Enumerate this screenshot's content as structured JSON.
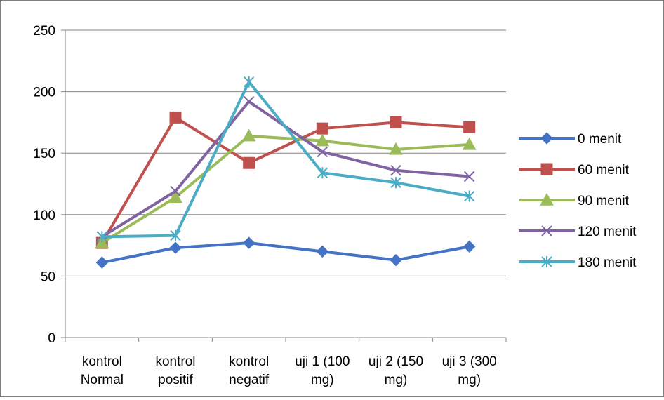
{
  "chart_data": {
    "type": "line",
    "categories": [
      [
        "kontrol",
        "Normal"
      ],
      [
        "kontrol",
        "positif"
      ],
      [
        "kontrol",
        "negatif"
      ],
      [
        "uji 1 (100",
        "mg)"
      ],
      [
        "uji 2 (150",
        "mg)"
      ],
      [
        "uji 3 (300",
        "mg)"
      ]
    ],
    "ylim": [
      0,
      250
    ],
    "yticks": [
      0,
      50,
      100,
      150,
      200,
      250
    ],
    "ytick_labels": [
      "0",
      "50",
      "100",
      "150",
      "200",
      "250"
    ],
    "grid": true,
    "legend_position": "right",
    "series": [
      {
        "name": "0 menit",
        "color": "#4472c4",
        "marker": "diamond",
        "values": [
          61,
          73,
          77,
          70,
          63,
          74
        ]
      },
      {
        "name": "60 menit",
        "color": "#c0504d",
        "marker": "square",
        "values": [
          77,
          179,
          142,
          170,
          175,
          171
        ]
      },
      {
        "name": "90 menit",
        "color": "#9bbb59",
        "marker": "triangle",
        "values": [
          77,
          114,
          164,
          160,
          153,
          157
        ]
      },
      {
        "name": "120 menit",
        "color": "#8064a2",
        "marker": "x",
        "values": [
          82,
          119,
          192,
          151,
          136,
          131
        ]
      },
      {
        "name": "180 menit",
        "color": "#4bacc6",
        "marker": "star",
        "values": [
          82,
          83,
          208,
          134,
          126,
          115
        ]
      }
    ]
  }
}
